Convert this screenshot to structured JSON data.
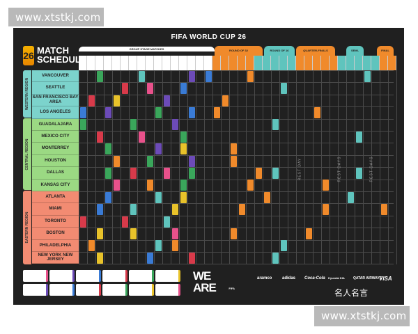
{
  "watermark": {
    "top": "www.xtstkj.com",
    "bottom": "www.xtstkj.com"
  },
  "poster": {
    "title": "FIFA WORLD CUP 26",
    "heading_line1": "MATCH",
    "heading_line2": "SCHEDULE",
    "logo_glyph": "26",
    "stage_headers": {
      "group": "GROUP STAGE MATCHES",
      "round32": "ROUND OF 32",
      "round16": "ROUND OF 16",
      "quarter": "QUARTER-FINALS",
      "semi": "SEMI-FINALS",
      "final": "FINAL"
    },
    "regions": [
      {
        "name": "WESTERN REGION",
        "color": "#7cd3cc"
      },
      {
        "name": "CENTRAL REGION",
        "color": "#9bd983"
      },
      {
        "name": "EASTERN REGION",
        "color": "#f28b72"
      }
    ],
    "cities": [
      "VANCOUVER",
      "SEATTLE",
      "SAN FRANCISCO BAY AREA",
      "LOS ANGELES",
      "GUADALAJARA",
      "MEXICO CITY",
      "MONTERREY",
      "HOUSTON",
      "DALLAS",
      "KANSAS CITY",
      "ATLANTA",
      "MIAMI",
      "TORONTO",
      "BOSTON",
      "PHILADELPHIA",
      "NEW YORK NEW JERSEY"
    ],
    "rest_days": [
      "REST DAY",
      "REST DAYS",
      "REST DAYS"
    ],
    "we_are_fifa": {
      "line1": "WE",
      "line2": "ARE",
      "sub": "FIFA"
    },
    "sponsors": [
      "aramco",
      "adidas",
      "Coca-Cola",
      "Hyundai KIA",
      "QATAR AIRWAYS",
      "VISA"
    ],
    "cn_mark": "名人名言",
    "colors": {
      "orange": "#f08a2b",
      "teal": "#5fc4bd",
      "pink": "#e8518b",
      "purple": "#6c4bb8",
      "blue": "#3a7bd5",
      "red": "#d83a4a",
      "green": "#3aa65b",
      "yellow": "#e8c22a"
    }
  }
}
